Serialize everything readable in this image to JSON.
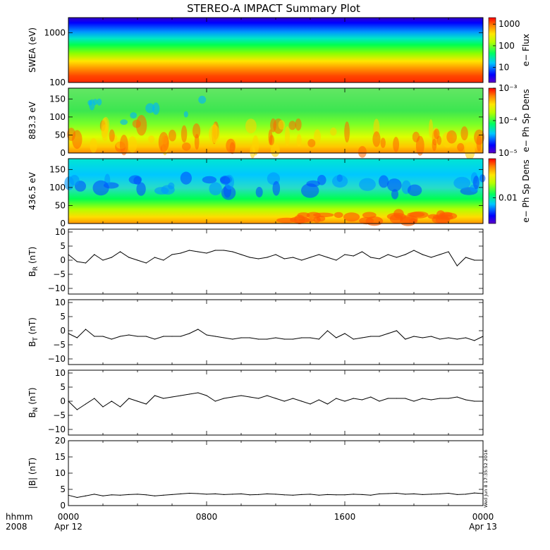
{
  "title": "STEREO-A IMPACT Summary Plot",
  "time_axis": {
    "corner_top": "hhmm",
    "corner_bottom": "2008",
    "ticks": [
      {
        "time": "0000",
        "date": "Apr 12"
      },
      {
        "time": "0800",
        "date": ""
      },
      {
        "time": "1600",
        "date": ""
      },
      {
        "time": "0000",
        "date": "Apr 13"
      }
    ],
    "minor_ticks_per_major": 4
  },
  "timestamp": "Wed Jun 8 17:35:52 2016",
  "colors": {
    "line": "#000000",
    "frame": "#000000"
  },
  "chart_data": [
    {
      "type": "heatmap",
      "panel": "swea",
      "ylabel": "SWEA (eV)",
      "yscale": "log",
      "ylim": [
        100,
        2000
      ],
      "yticks": [
        "1000",
        "100"
      ],
      "colorbar": {
        "label": "e− Flux",
        "scale": "log",
        "range": [
          2,
          2000
        ],
        "ticks": [
          "1000",
          "100",
          "10"
        ]
      },
      "description_bands": "flux decreases smoothly with energy; roughly constant in time"
    },
    {
      "type": "heatmap",
      "panel": "pad_883",
      "ylabel": "883.3 eV",
      "ylim": [
        0,
        180
      ],
      "yticks": [
        "150",
        "100",
        "50",
        "0"
      ],
      "colorbar": {
        "label": "e− Ph Sp Dens",
        "scale": "log",
        "range": [
          1e-05,
          0.001
        ],
        "ticks": [
          "10⁻³",
          "10⁻⁴",
          "10⁻⁵"
        ]
      }
    },
    {
      "type": "heatmap",
      "panel": "pad_436",
      "ylabel": "436.5 eV",
      "ylim": [
        0,
        180
      ],
      "yticks": [
        "150",
        "100",
        "50",
        "0"
      ],
      "colorbar": {
        "label": "e− Ph Sp Dens",
        "scale": "log",
        "range": [
          0.004,
          0.04
        ],
        "ticks": [
          "0.01"
        ]
      }
    },
    {
      "type": "line",
      "panel": "br",
      "ylabel": "B",
      "ylabel_sub": "R",
      "ylabel_unit": " (nT)",
      "ylim": [
        -12,
        11
      ],
      "yticks": [
        "10",
        "5",
        "0",
        "−5",
        "−10"
      ],
      "x_hours": [
        0,
        0.5,
        1,
        1.5,
        2,
        2.5,
        3,
        3.5,
        4,
        4.5,
        5,
        5.5,
        6,
        6.5,
        7,
        7.5,
        8,
        8.5,
        9,
        9.5,
        10,
        10.5,
        11,
        11.5,
        12,
        12.5,
        13,
        13.5,
        14,
        14.5,
        15,
        15.5,
        16,
        16.5,
        17,
        17.5,
        18,
        18.5,
        19,
        19.5,
        20,
        20.5,
        21,
        21.5,
        22,
        22.5,
        23,
        23.5,
        24
      ],
      "values": [
        2,
        -0.5,
        -1,
        2,
        0,
        1,
        3,
        1,
        0,
        -1,
        1,
        0,
        2,
        2.5,
        3.5,
        3,
        2.5,
        3.5,
        3.5,
        3,
        2,
        1,
        0.5,
        1,
        2,
        0.5,
        1,
        0,
        1,
        2,
        1,
        0,
        2,
        1.5,
        3,
        1,
        0.5,
        2,
        1,
        2,
        3.5,
        2,
        1,
        2,
        3,
        -2,
        1,
        0,
        0
      ]
    },
    {
      "type": "line",
      "panel": "bt",
      "ylabel": "B",
      "ylabel_sub": "T",
      "ylabel_unit": " (nT)",
      "ylim": [
        -12,
        11
      ],
      "yticks": [
        "10",
        "5",
        "0",
        "−5",
        "−10"
      ],
      "x_hours": [
        0,
        0.5,
        1,
        1.5,
        2,
        2.5,
        3,
        3.5,
        4,
        4.5,
        5,
        5.5,
        6,
        6.5,
        7,
        7.5,
        8,
        8.5,
        9,
        9.5,
        10,
        10.5,
        11,
        11.5,
        12,
        12.5,
        13,
        13.5,
        14,
        14.5,
        15,
        15.5,
        16,
        16.5,
        17,
        17.5,
        18,
        18.5,
        19,
        19.5,
        20,
        20.5,
        21,
        21.5,
        22,
        22.5,
        23,
        23.5,
        24
      ],
      "values": [
        -1,
        -2.5,
        0.5,
        -2,
        -2,
        -3,
        -2,
        -1.5,
        -2,
        -2,
        -3,
        -2,
        -2,
        -2,
        -1,
        0.5,
        -1.5,
        -2,
        -2.5,
        -3,
        -2.5,
        -2.5,
        -3,
        -3,
        -2.5,
        -3,
        -3,
        -2.5,
        -2.5,
        -3,
        0,
        -2.5,
        -1,
        -3,
        -2.5,
        -2,
        -2,
        -1,
        0,
        -3,
        -2,
        -2.5,
        -2,
        -3,
        -2.5,
        -3,
        -2.5,
        -3.5,
        -2
      ]
    },
    {
      "type": "line",
      "panel": "bn",
      "ylabel": "B",
      "ylabel_sub": "N",
      "ylabel_unit": " (nT)",
      "ylim": [
        -12,
        11
      ],
      "yticks": [
        "10",
        "5",
        "0",
        "−5",
        "−10"
      ],
      "x_hours": [
        0,
        0.5,
        1,
        1.5,
        2,
        2.5,
        3,
        3.5,
        4,
        4.5,
        5,
        5.5,
        6,
        6.5,
        7,
        7.5,
        8,
        8.5,
        9,
        9.5,
        10,
        10.5,
        11,
        11.5,
        12,
        12.5,
        13,
        13.5,
        14,
        14.5,
        15,
        15.5,
        16,
        16.5,
        17,
        17.5,
        18,
        18.5,
        19,
        19.5,
        20,
        20.5,
        21,
        21.5,
        22,
        22.5,
        23,
        23.5,
        24
      ],
      "values": [
        0,
        -3,
        -1,
        1,
        -2,
        0,
        -2,
        1,
        0,
        -1,
        2,
        1,
        1.5,
        2,
        2.5,
        3,
        2,
        0,
        1,
        1.5,
        2,
        1.5,
        1,
        2,
        1,
        0,
        1,
        0,
        -1,
        0.5,
        -1,
        1,
        0,
        1,
        0.5,
        1.5,
        0,
        1,
        1,
        1,
        0,
        1,
        0.5,
        1,
        1,
        1.5,
        0.5,
        0,
        0
      ]
    },
    {
      "type": "line",
      "panel": "bmag",
      "ylabel": "|B| (nT)",
      "ylim": [
        0,
        20
      ],
      "yticks": [
        "20",
        "15",
        "10",
        "5",
        "0"
      ],
      "x_hours": [
        0,
        0.5,
        1,
        1.5,
        2,
        2.5,
        3,
        3.5,
        4,
        4.5,
        5,
        5.5,
        6,
        6.5,
        7,
        7.5,
        8,
        8.5,
        9,
        9.5,
        10,
        10.5,
        11,
        11.5,
        12,
        12.5,
        13,
        13.5,
        14,
        14.5,
        15,
        15.5,
        16,
        16.5,
        17,
        17.5,
        18,
        18.5,
        19,
        19.5,
        20,
        20.5,
        21,
        21.5,
        22,
        22.5,
        23,
        23.5,
        24
      ],
      "values": [
        3.2,
        2.5,
        3.0,
        3.5,
        3.0,
        3.3,
        3.2,
        3.4,
        3.5,
        3.3,
        3.0,
        3.2,
        3.4,
        3.6,
        3.8,
        3.7,
        3.5,
        3.6,
        3.4,
        3.5,
        3.6,
        3.3,
        3.4,
        3.6,
        3.5,
        3.3,
        3.2,
        3.4,
        3.5,
        3.2,
        3.4,
        3.3,
        3.3,
        3.5,
        3.4,
        3.2,
        3.6,
        3.7,
        3.8,
        3.5,
        3.6,
        3.4,
        3.5,
        3.6,
        3.8,
        3.4,
        3.5,
        3.9,
        3.7
      ]
    }
  ]
}
